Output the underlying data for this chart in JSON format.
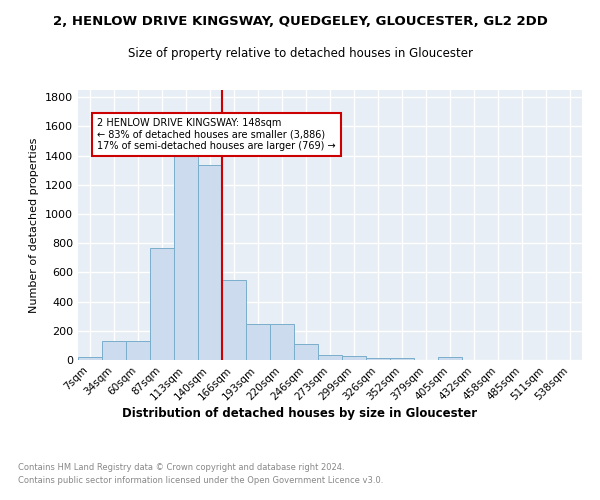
{
  "title": "2, HENLOW DRIVE KINGSWAY, QUEDGELEY, GLOUCESTER, GL2 2DD",
  "subtitle": "Size of property relative to detached houses in Gloucester",
  "xlabel": "Distribution of detached houses by size in Gloucester",
  "ylabel": "Number of detached properties",
  "bar_values": [
    20,
    130,
    130,
    770,
    1440,
    1335,
    550,
    245,
    245,
    110,
    35,
    25,
    15,
    15,
    0,
    20,
    0,
    0,
    0,
    0,
    0
  ],
  "all_labels": [
    "7sqm",
    "34sqm",
    "60sqm",
    "87sqm",
    "113sqm",
    "140sqm",
    "166sqm",
    "193sqm",
    "220sqm",
    "246sqm",
    "273sqm",
    "299sqm",
    "326sqm",
    "352sqm",
    "379sqm",
    "405sqm",
    "432sqm",
    "458sqm",
    "485sqm",
    "511sqm",
    "538sqm"
  ],
  "bar_color": "#ccdcee",
  "bar_edge_color": "#7aaecb",
  "property_size": "148sqm",
  "pct_smaller": 83,
  "count_smaller": 3886,
  "pct_larger": 17,
  "count_larger": 769,
  "annotation_line_color": "#cc0000",
  "ylim": [
    0,
    1850
  ],
  "yticks": [
    0,
    200,
    400,
    600,
    800,
    1000,
    1200,
    1400,
    1600,
    1800
  ],
  "background_color": "#e8eef5",
  "grid_color": "#ffffff",
  "footnote1": "Contains HM Land Registry data © Crown copyright and database right 2024.",
  "footnote2": "Contains public sector information licensed under the Open Government Licence v3.0."
}
